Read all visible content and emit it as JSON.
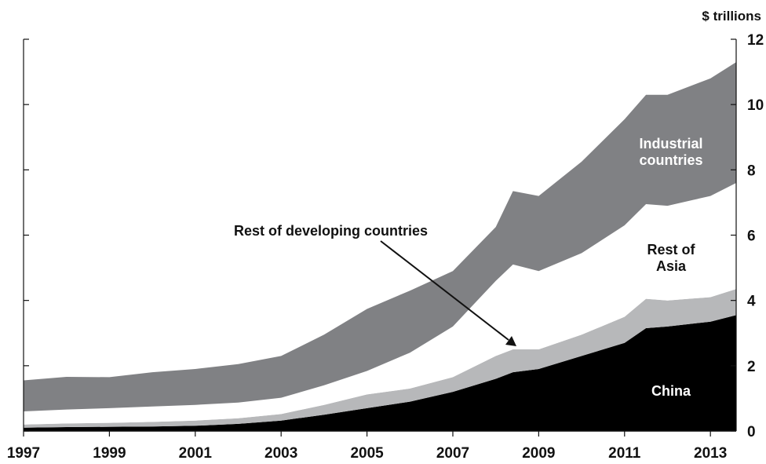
{
  "chart_data": {
    "type": "area",
    "stacked": true,
    "title": "",
    "xlabel": "",
    "ylabel": "$ trillions",
    "x": [
      1997,
      1998,
      1999,
      2000,
      2001,
      2002,
      2003,
      2004,
      2005,
      2006,
      2007,
      2008,
      2008.4,
      2009,
      2010,
      2011,
      2011.5,
      2012,
      2013,
      2013.6
    ],
    "series": [
      {
        "name": "China",
        "color": "#000000",
        "values": [
          0.1,
          0.12,
          0.13,
          0.14,
          0.16,
          0.22,
          0.32,
          0.5,
          0.7,
          0.9,
          1.2,
          1.6,
          1.8,
          1.9,
          2.3,
          2.7,
          3.15,
          3.2,
          3.35,
          3.55
        ]
      },
      {
        "name": "Rest of developing countries",
        "color": "#b7b8ba",
        "values": [
          0.1,
          0.11,
          0.12,
          0.14,
          0.16,
          0.17,
          0.2,
          0.3,
          0.42,
          0.4,
          0.45,
          0.7,
          0.7,
          0.6,
          0.65,
          0.8,
          0.9,
          0.8,
          0.75,
          0.8
        ]
      },
      {
        "name": "Rest of Asia",
        "color": "#ffffff",
        "values": [
          0.4,
          0.43,
          0.45,
          0.47,
          0.48,
          0.48,
          0.5,
          0.6,
          0.72,
          1.1,
          1.55,
          2.3,
          2.6,
          2.4,
          2.5,
          2.8,
          2.9,
          2.9,
          3.1,
          3.25
        ]
      },
      {
        "name": "Industrial countries",
        "color": "#808184",
        "values": [
          0.95,
          1.0,
          0.95,
          1.05,
          1.1,
          1.18,
          1.28,
          1.55,
          1.9,
          1.9,
          1.7,
          1.65,
          2.25,
          2.3,
          2.8,
          3.25,
          3.35,
          3.4,
          3.6,
          3.7
        ]
      }
    ],
    "xlim": [
      1997,
      2013.6
    ],
    "ylim": [
      0,
      12
    ],
    "x_ticks": [
      1997,
      1999,
      2001,
      2003,
      2005,
      2007,
      2009,
      2011,
      2013
    ],
    "y_ticks_right": [
      0,
      2,
      4,
      6,
      8,
      10,
      12
    ],
    "y_axis_side": "both (labels on right)",
    "grid": false,
    "legend": "none (inline labels)",
    "annotations": {
      "industrial": [
        "Industrial",
        "countries"
      ],
      "rest_asia": [
        "Rest of",
        "Asia"
      ],
      "rest_dev": "Rest of developing countries",
      "china": "China"
    }
  }
}
